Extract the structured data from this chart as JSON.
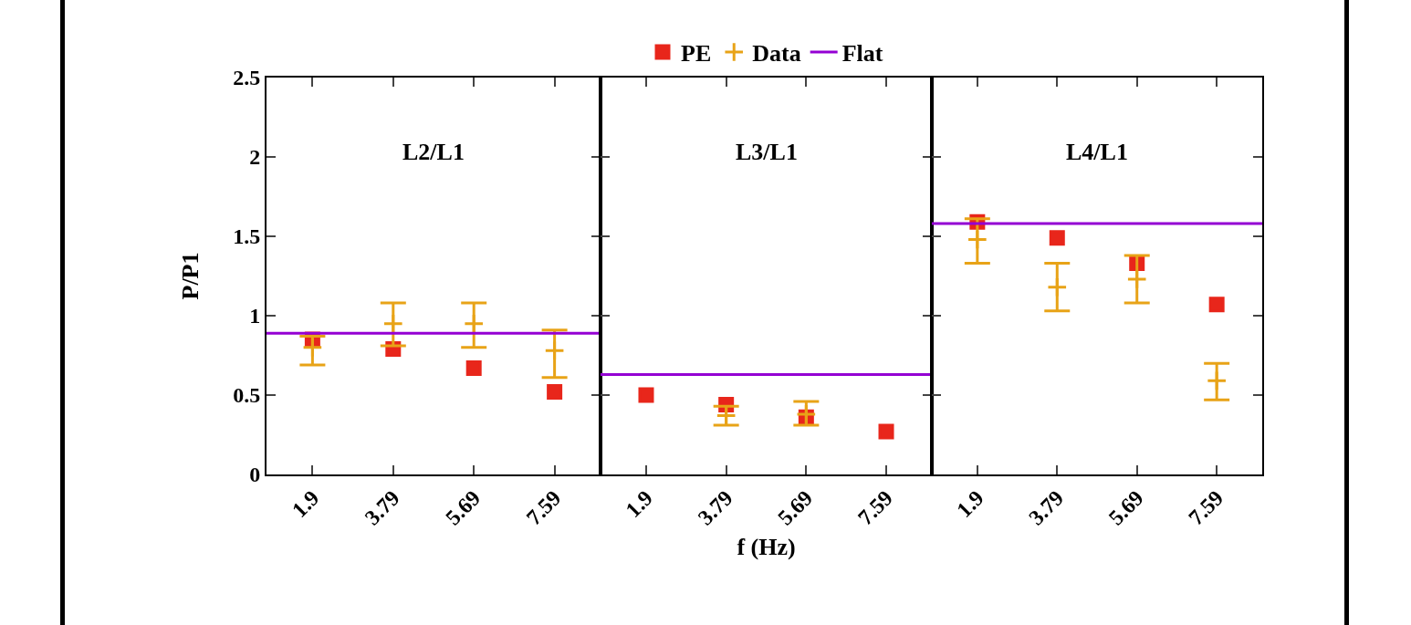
{
  "chart_data": [
    {
      "type": "scatter",
      "title": "L2/L1",
      "ylabel": "P/P1",
      "grid": false,
      "categories": [
        "1.9",
        "3.79",
        "5.69",
        "7.59"
      ],
      "ylim": [
        0,
        2.5
      ],
      "yticks": [
        0,
        0.5,
        1,
        1.5,
        2,
        2.5
      ],
      "ref_lines": [
        {
          "axis": "y",
          "value": 0.89,
          "color": "#9400d3"
        }
      ],
      "series": [
        {
          "type": "scatter",
          "marker": "square",
          "color": "#e8261b",
          "values": [
            0.85,
            0.79,
            0.67,
            0.52
          ]
        },
        {
          "type": "scatter",
          "marker": "cross",
          "color": "#e8a317",
          "values": [
            0.8,
            0.95,
            0.95,
            0.78
          ],
          "errors": [
            [
              0.69,
              0.87
            ],
            [
              0.81,
              1.08
            ],
            [
              0.8,
              1.08
            ],
            [
              0.61,
              0.91
            ]
          ]
        }
      ]
    },
    {
      "type": "scatter",
      "title": "L3/L1",
      "xlabel": "f (Hz)",
      "grid": false,
      "legend": "top",
      "tick_labels": "x",
      "categories": [
        "1.9",
        "3.79",
        "5.69",
        "7.59"
      ],
      "ylim": [
        0,
        2.5
      ],
      "yticks": [
        0,
        0.5,
        1,
        1.5,
        2,
        2.5
      ],
      "ref_lines": [
        {
          "axis": "y",
          "value": 0.63,
          "color": "#9400d3",
          "label": "Flat"
        }
      ],
      "series": [
        {
          "name": "PE",
          "type": "scatter",
          "marker": "square",
          "color": "#e8261b",
          "values": [
            0.5,
            0.44,
            0.36,
            0.27
          ]
        },
        {
          "name": "Data",
          "type": "scatter",
          "marker": "cross",
          "color": "#e8a317",
          "values": [
            null,
            0.37,
            0.38,
            null
          ],
          "errors": [
            null,
            [
              0.31,
              0.43
            ],
            [
              0.31,
              0.46
            ],
            null
          ]
        }
      ]
    },
    {
      "type": "scatter",
      "title": "L4/L1",
      "grid": false,
      "tick_labels": "x",
      "categories": [
        "1.9",
        "3.79",
        "5.69",
        "7.59"
      ],
      "ylim": [
        0,
        2.5
      ],
      "yticks": [
        0,
        0.5,
        1,
        1.5,
        2,
        2.5
      ],
      "ref_lines": [
        {
          "axis": "y",
          "value": 1.58,
          "color": "#9400d3"
        }
      ],
      "series": [
        {
          "type": "scatter",
          "marker": "square",
          "color": "#e8261b",
          "values": [
            1.59,
            1.49,
            1.33,
            1.07
          ]
        },
        {
          "type": "scatter",
          "marker": "cross",
          "color": "#e8a317",
          "values": [
            1.48,
            1.18,
            1.23,
            0.59
          ],
          "errors": [
            [
              1.33,
              1.61
            ],
            [
              1.03,
              1.33
            ],
            [
              1.08,
              1.38
            ],
            [
              0.47,
              0.7
            ]
          ]
        }
      ]
    }
  ]
}
